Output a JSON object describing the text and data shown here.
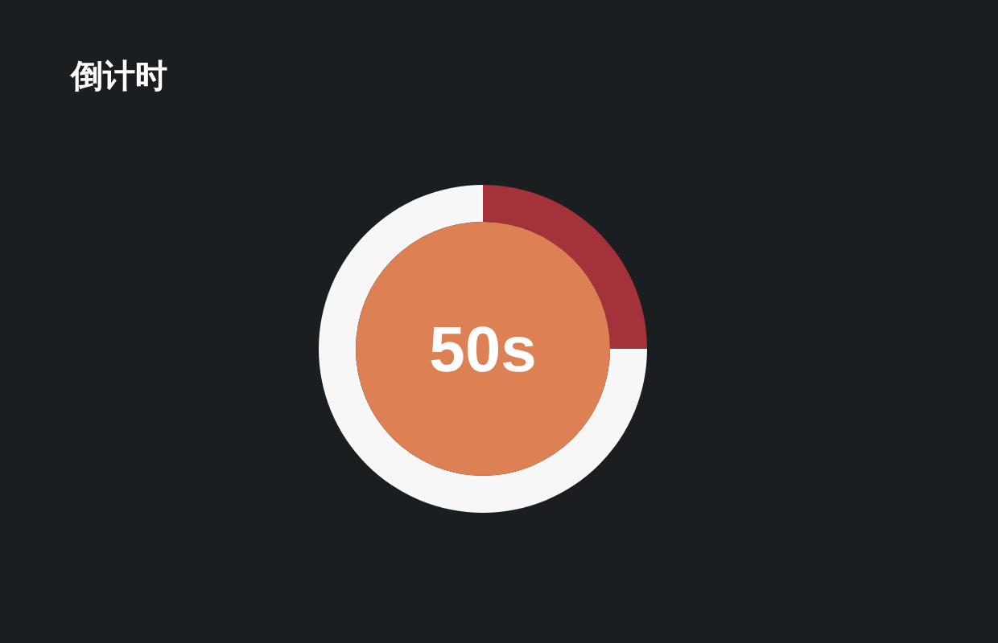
{
  "chart_data": {
    "type": "donut",
    "title": "倒计时",
    "categories": [
      null,
      null
    ],
    "values": [
      25,
      75
    ],
    "colors": [
      "#a4323a",
      "#f7f7f7"
    ],
    "annotations": [
      "50s"
    ]
  }
}
